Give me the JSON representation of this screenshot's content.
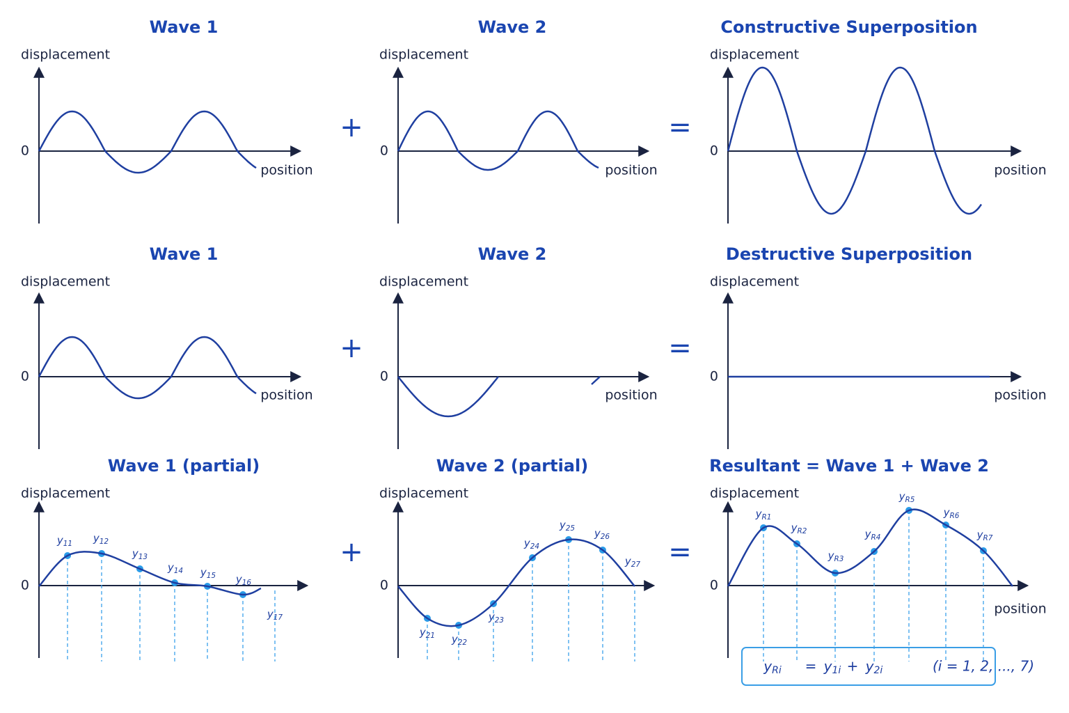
{
  "rows": [
    {
      "panels": [
        {
          "title": "Wave 1",
          "y_label": "displacement",
          "zero": "0",
          "x_label": "position"
        },
        {
          "title": "Wave 2",
          "y_label": "displacement",
          "zero": "0",
          "x_label": "position"
        },
        {
          "title": "Constructive Superposition",
          "y_label": "displacement",
          "zero": "0",
          "x_label": "position"
        }
      ],
      "operators": [
        "+",
        "="
      ]
    },
    {
      "panels": [
        {
          "title": "Wave 1",
          "y_label": "displacement",
          "zero": "0",
          "x_label": "position"
        },
        {
          "title": "Wave 2",
          "y_label": "displacement",
          "zero": "0",
          "x_label": "position"
        },
        {
          "title": "Destructive Superposition",
          "y_label": "displacement",
          "zero": "0",
          "x_label": "position"
        }
      ],
      "operators": [
        "+",
        "="
      ]
    },
    {
      "panels": [
        {
          "title": "Wave 1 (partial)",
          "y_label": "displacement",
          "zero": "0",
          "points": [
            {
              "var": "y",
              "sub": "11"
            },
            {
              "var": "y",
              "sub": "12"
            },
            {
              "var": "y",
              "sub": "13"
            },
            {
              "var": "y",
              "sub": "14"
            },
            {
              "var": "y",
              "sub": "15"
            },
            {
              "var": "y",
              "sub": "16"
            },
            {
              "var": "y",
              "sub": "17"
            }
          ]
        },
        {
          "title": "Wave 2 (partial)",
          "y_label": "displacement",
          "zero": "0",
          "points": [
            {
              "var": "y",
              "sub": "21"
            },
            {
              "var": "y",
              "sub": "22"
            },
            {
              "var": "y",
              "sub": "23"
            },
            {
              "var": "y",
              "sub": "24"
            },
            {
              "var": "y",
              "sub": "25"
            },
            {
              "var": "y",
              "sub": "26"
            },
            {
              "var": "y",
              "sub": "27"
            }
          ]
        },
        {
          "title": "Resultant = Wave 1 + Wave 2",
          "y_label": "displacement",
          "zero": "0",
          "x_label": "position",
          "points": [
            {
              "var": "y",
              "sub": "R1"
            },
            {
              "var": "y",
              "sub": "R2"
            },
            {
              "var": "y",
              "sub": "R3"
            },
            {
              "var": "y",
              "sub": "R4"
            },
            {
              "var": "y",
              "sub": "R5"
            },
            {
              "var": "y",
              "sub": "R6"
            },
            {
              "var": "y",
              "sub": "R7"
            }
          ]
        }
      ],
      "operators": [
        "+",
        "="
      ]
    }
  ],
  "formula": [
    {
      "var": "y",
      "sub": "Ri"
    },
    "=",
    {
      "var": "y",
      "sub": "1i"
    },
    "+",
    {
      "var": "y",
      "sub": "2i"
    },
    "(i = 1, 2, ..., 7)"
  ]
}
